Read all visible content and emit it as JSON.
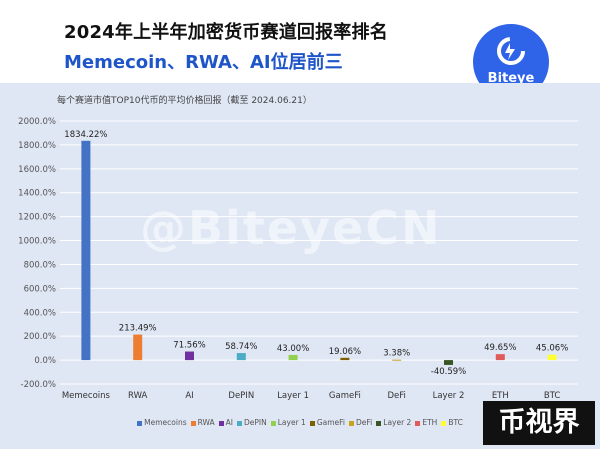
{
  "header": {
    "title_line1": "2024年上半年加密货币赛道回报率排名",
    "title_line2": "Memecoin、RWA、AI位居前三"
  },
  "logo": {
    "text": "Biteye",
    "color": "#2f63e8"
  },
  "watermark": "@BiteyeCN",
  "badge": {
    "text": "币视界"
  },
  "chart_data": {
    "type": "bar",
    "subtitle": "每个赛道市值TOP10代币的平均价格回报（截至 2024.06.21）",
    "categories": [
      "Memecoins",
      "RWA",
      "AI",
      "DePIN",
      "Layer 1",
      "GameFi",
      "DeFi",
      "Layer 2",
      "ETH",
      "BTC"
    ],
    "values": [
      1834.22,
      213.49,
      71.56,
      58.74,
      43.0,
      19.06,
      3.38,
      -40.59,
      49.65,
      45.06
    ],
    "data_labels": [
      "1834.22%",
      "213.49%",
      "71.56%",
      "58.74%",
      "43.00%",
      "19.06%",
      "3.38%",
      "-40.59%",
      "49.65%",
      "45.06%"
    ],
    "colors": [
      "#4472c4",
      "#ed7d31",
      "#7030a0",
      "#4bacc6",
      "#92d050",
      "#7f6000",
      "#c9a51c",
      "#375623",
      "#e05a5a",
      "#ffff33"
    ],
    "ylim": [
      -200,
      2000
    ],
    "ytick_step": 200,
    "ytick_labels": [
      "-200.0%",
      "0.0%",
      "200.0%",
      "400.0%",
      "600.0%",
      "800.0%",
      "1000.0%",
      "1200.0%",
      "1400.0%",
      "1600.0%",
      "1800.0%",
      "2000.0%"
    ],
    "grid": true,
    "legend": "bottom"
  }
}
